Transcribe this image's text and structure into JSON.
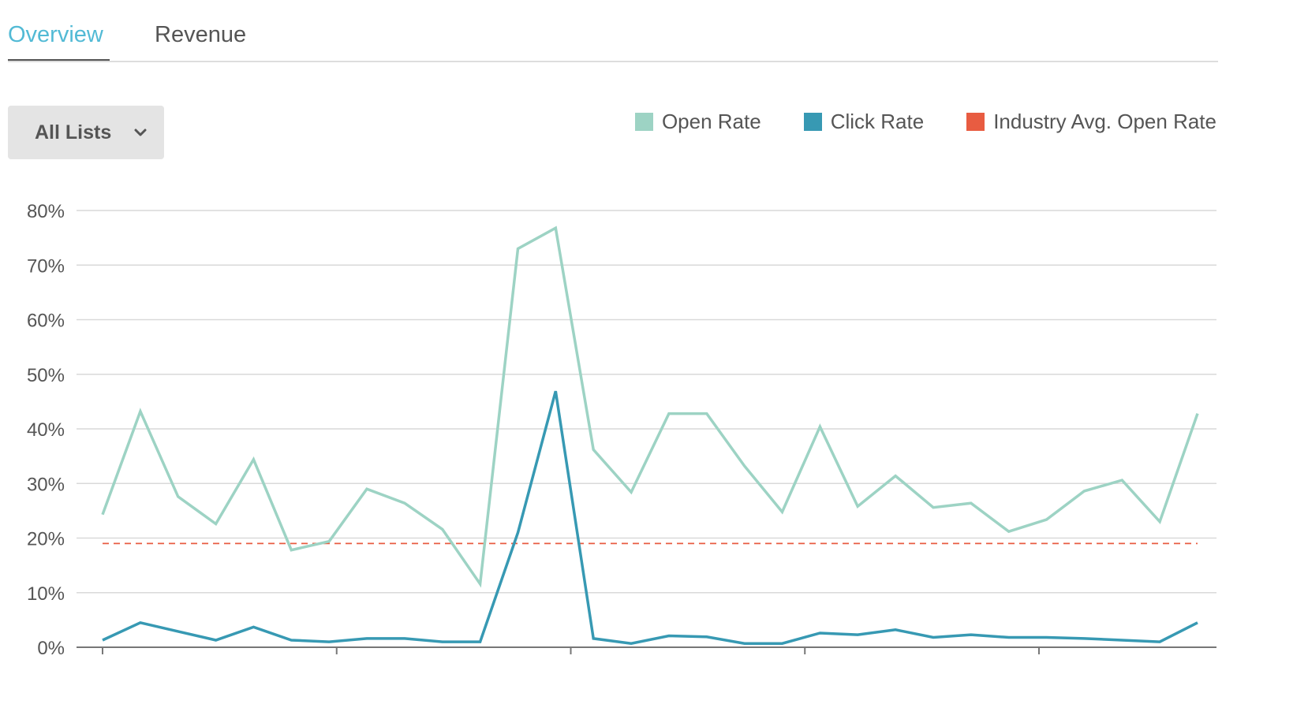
{
  "tabs": [
    {
      "label": "Overview",
      "active": true
    },
    {
      "label": "Revenue",
      "active": false
    }
  ],
  "filter": {
    "selected": "All Lists",
    "icon": "chevron-down-icon"
  },
  "colors": {
    "active_tab": "#52bad5",
    "open_rate": "#9dd3c4",
    "click_rate": "#3799b3",
    "industry_avg": "#e85c41",
    "grid": "#d9d9d9",
    "axis": "#777777"
  },
  "chart_data": {
    "type": "line",
    "title": "",
    "xlabel": "",
    "ylabel": "",
    "x": [
      1,
      2,
      3,
      4,
      5,
      6,
      7,
      8,
      9,
      10,
      11,
      12,
      13,
      14,
      15,
      16,
      17,
      18,
      19,
      20,
      21,
      22,
      23,
      24,
      25,
      26,
      27,
      28,
      29,
      30
    ],
    "ylim": [
      0,
      80
    ],
    "yticks": [
      "0%",
      "10%",
      "20%",
      "30%",
      "40%",
      "50%",
      "60%",
      "70%",
      "80%"
    ],
    "ytick_values": [
      0,
      10,
      20,
      30,
      40,
      50,
      60,
      70,
      80
    ],
    "xtick_positions": [
      1,
      7.2,
      13.4,
      19.6,
      25.8
    ],
    "grid": true,
    "legend_position": "top-right",
    "series": [
      {
        "name": "Open Rate",
        "values": [
          24.3,
          43.2,
          27.6,
          22.6,
          34.4,
          17.8,
          19.4,
          29.0,
          26.4,
          21.6,
          11.6,
          73.0,
          76.8,
          36.2,
          28.4,
          42.8,
          42.8,
          33.2,
          24.8,
          40.4,
          25.8,
          31.4,
          25.6,
          26.4,
          21.2,
          23.4,
          28.6,
          30.6,
          23.0,
          42.8
        ]
      },
      {
        "name": "Click Rate",
        "values": [
          1.3,
          4.5,
          2.9,
          1.3,
          3.7,
          1.3,
          1.0,
          1.6,
          1.6,
          1.0,
          1.0,
          21.0,
          46.9,
          1.6,
          0.7,
          2.1,
          1.9,
          0.7,
          0.7,
          2.6,
          2.3,
          3.2,
          1.8,
          2.3,
          1.8,
          1.8,
          1.6,
          1.3,
          1.0,
          4.5
        ]
      },
      {
        "name": "Industry Avg. Open Rate",
        "values": [
          19.0,
          19.0,
          19.0,
          19.0,
          19.0,
          19.0,
          19.0,
          19.0,
          19.0,
          19.0,
          19.0,
          19.0,
          19.0,
          19.0,
          19.0,
          19.0,
          19.0,
          19.0,
          19.0,
          19.0,
          19.0,
          19.0,
          19.0,
          19.0,
          19.0,
          19.0,
          19.0,
          19.0,
          19.0,
          19.0
        ]
      }
    ]
  }
}
